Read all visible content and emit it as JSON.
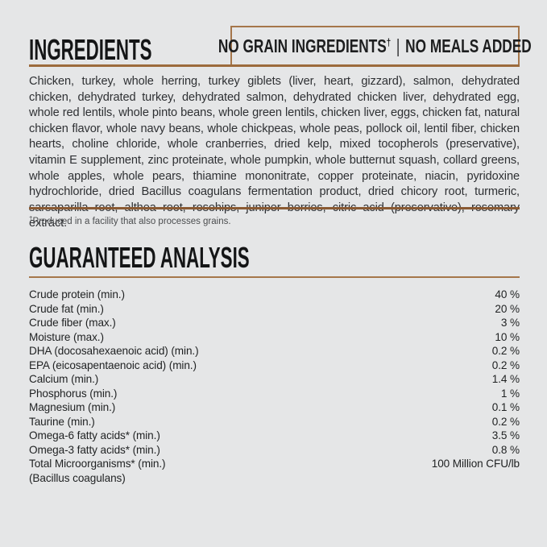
{
  "page": {
    "background_color": "#e5e6e7",
    "accent_brown": "#9c6b3c",
    "border_brown": "#a5764a"
  },
  "ingredients": {
    "title": "INGREDIENTS",
    "badge": {
      "left": "NO GRAIN INGREDIENTS",
      "dagger": "†",
      "separator": "|",
      "right": "NO MEALS ADDED"
    },
    "body": "Chicken, turkey, whole herring, turkey giblets (liver, heart, gizzard), salmon, dehydrated chicken, dehydrated turkey, dehydrated salmon, dehydrated chicken liver, dehydrated egg, whole red lentils, whole pinto beans, whole green lentils, chicken liver, eggs, chicken fat, natural chicken flavor, whole navy beans, whole chickpeas, whole peas, pollock oil, lentil fiber, chicken hearts, choline chloride, whole cranberries, dried kelp, mixed tocopherols (preservative), vitamin E supplement, zinc proteinate, whole pumpkin, whole butternut squash, collard greens, whole apples, whole pears, thiamine mononitrate, copper proteinate, niacin, pyridoxine hydrochloride, dried Bacillus coagulans fermentation product, dried chicory root, turmeric, sarsaparilla root, althea root, rosehips, juniper berries, citric acid (preservative), rosemary extract.",
    "footnote_dagger": "†",
    "footnote_text": "Produced in a facility that also processes grains."
  },
  "analysis": {
    "title": "GUARANTEED ANALYSIS",
    "rows": [
      {
        "label": "Crude protein (min.)",
        "value": "40 %"
      },
      {
        "label": "Crude fat (min.)",
        "value": "20 %"
      },
      {
        "label": "Crude fiber (max.)",
        "value": "3 %"
      },
      {
        "label": "Moisture (max.)",
        "value": "10 %"
      },
      {
        "label": "DHA (docosahexaenoic acid) (min.)",
        "value": "0.2 %"
      },
      {
        "label": "EPA (eicosapentaenoic acid) (min.)",
        "value": "0.2 %"
      },
      {
        "label": "Calcium (min.)",
        "value": "1.4 %"
      },
      {
        "label": "Phosphorus (min.)",
        "value": "1 %"
      },
      {
        "label": "Magnesium (min.)",
        "value": "0.1 %"
      },
      {
        "label": "Taurine (min.)",
        "value": "0.2 %"
      },
      {
        "label": "Omega-6 fatty acids* (min.)",
        "value": "3.5 %"
      },
      {
        "label": "Omega-3 fatty acids* (min.)",
        "value": "0.8 %"
      },
      {
        "label": "Total Microorganisms* (min.)",
        "value": "100 Million CFU/lb"
      },
      {
        "label": "(Bacillus coagulans)",
        "value": ""
      }
    ]
  }
}
